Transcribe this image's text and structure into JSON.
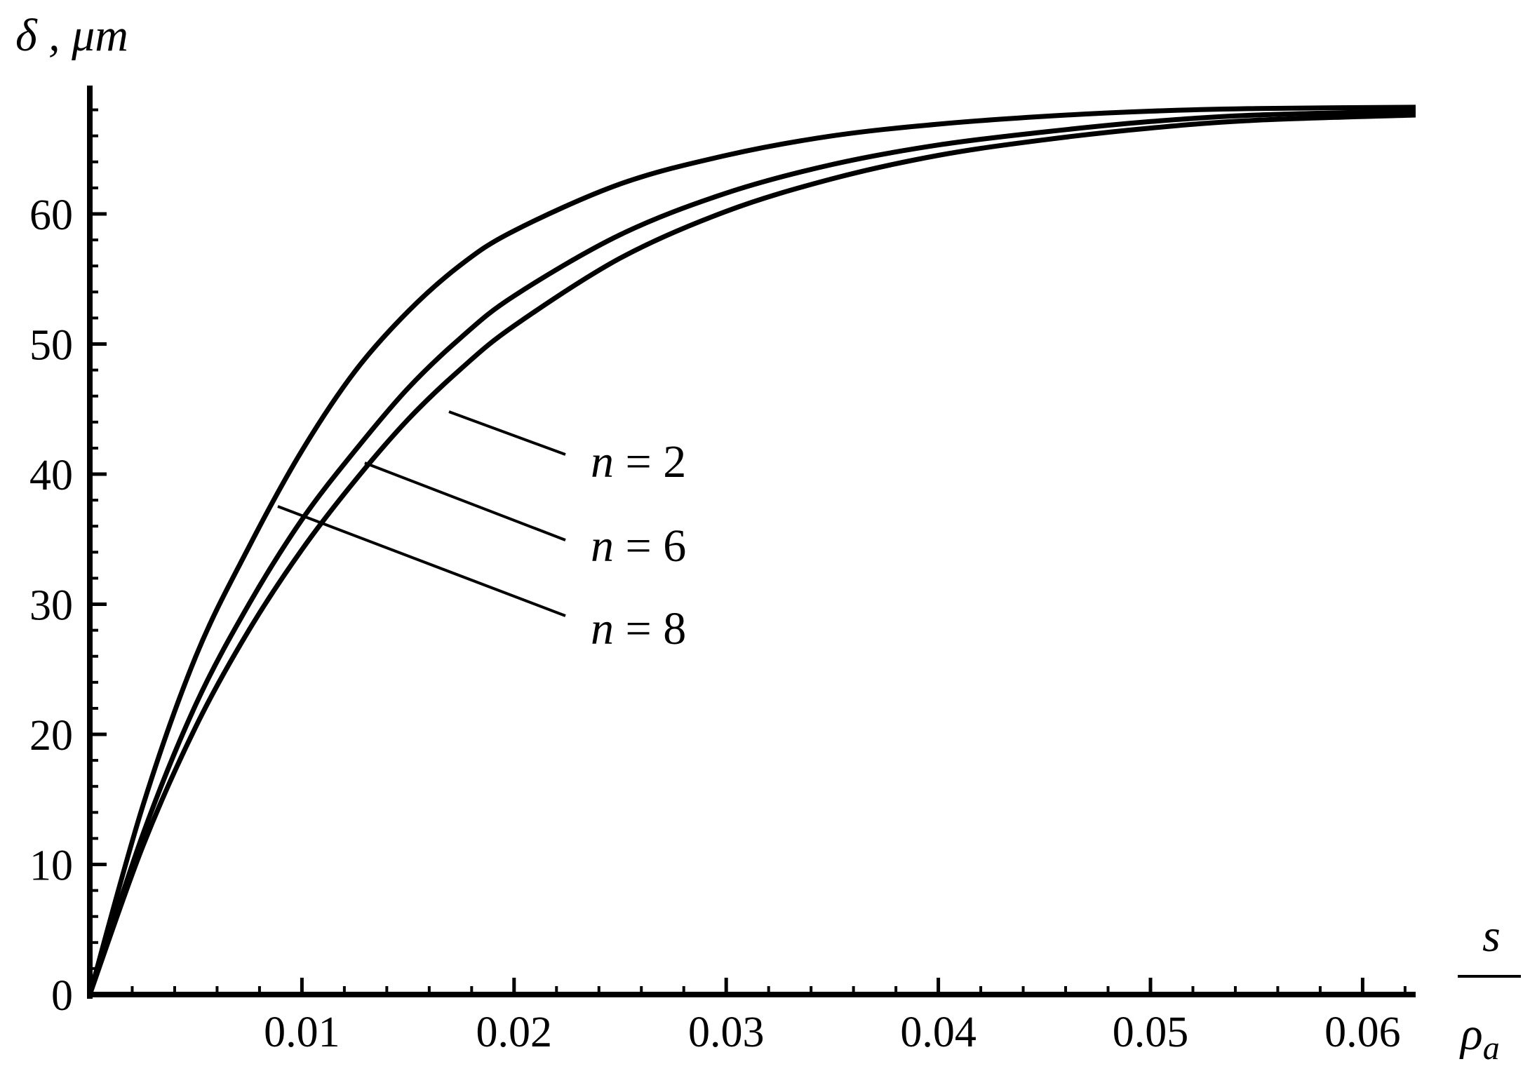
{
  "chart_data": {
    "type": "line",
    "title": "",
    "ylabel": "δ , μm",
    "xlabel": {
      "numerator": "s",
      "denominator": "ρ",
      "subscript": "a"
    },
    "xlim": [
      0,
      0.0625
    ],
    "ylim": [
      0,
      70
    ],
    "x_ticks": [
      0.01,
      0.02,
      0.03,
      0.04,
      0.05,
      0.06
    ],
    "x_tick_labels": [
      "0.01",
      "0.02",
      "0.03",
      "0.04",
      "0.05",
      "0.06"
    ],
    "y_ticks": [
      0,
      10,
      20,
      30,
      40,
      50,
      60
    ],
    "y_tick_labels": [
      "0",
      "10",
      "20",
      "30",
      "40",
      "50",
      "60"
    ],
    "grid": false,
    "legend": "annotations with leader lines",
    "line_color": "#000000",
    "x": [
      0,
      0.0025,
      0.005,
      0.0075,
      0.01,
      0.0125,
      0.015,
      0.0175,
      0.02,
      0.025,
      0.03,
      0.035,
      0.04,
      0.045,
      0.05,
      0.055,
      0.0625
    ],
    "series": [
      {
        "name": "n = 2",
        "values": [
          0,
          14.5,
          26.0,
          34.4,
          41.8,
          47.9,
          52.5,
          56.1,
          58.7,
          62.3,
          64.5,
          66.0,
          66.9,
          67.5,
          67.9,
          68.1,
          68.2
        ]
      },
      {
        "name": "n = 6",
        "values": [
          0,
          12.3,
          22.3,
          30.0,
          36.5,
          41.8,
          46.6,
          50.5,
          53.7,
          58.4,
          61.6,
          63.8,
          65.3,
          66.3,
          67.1,
          67.6,
          67.9
        ]
      },
      {
        "name": "n = 8",
        "values": [
          0,
          11.4,
          20.6,
          28.0,
          34.2,
          39.5,
          44.2,
          48.1,
          51.4,
          56.6,
          60.2,
          62.7,
          64.5,
          65.7,
          66.6,
          67.2,
          67.6
        ]
      }
    ],
    "annotations": [
      {
        "text": "n = 2",
        "series": "n = 2"
      },
      {
        "text": "n = 6",
        "series": "n = 6"
      },
      {
        "text": "n = 8",
        "series": "n = 8"
      }
    ]
  }
}
